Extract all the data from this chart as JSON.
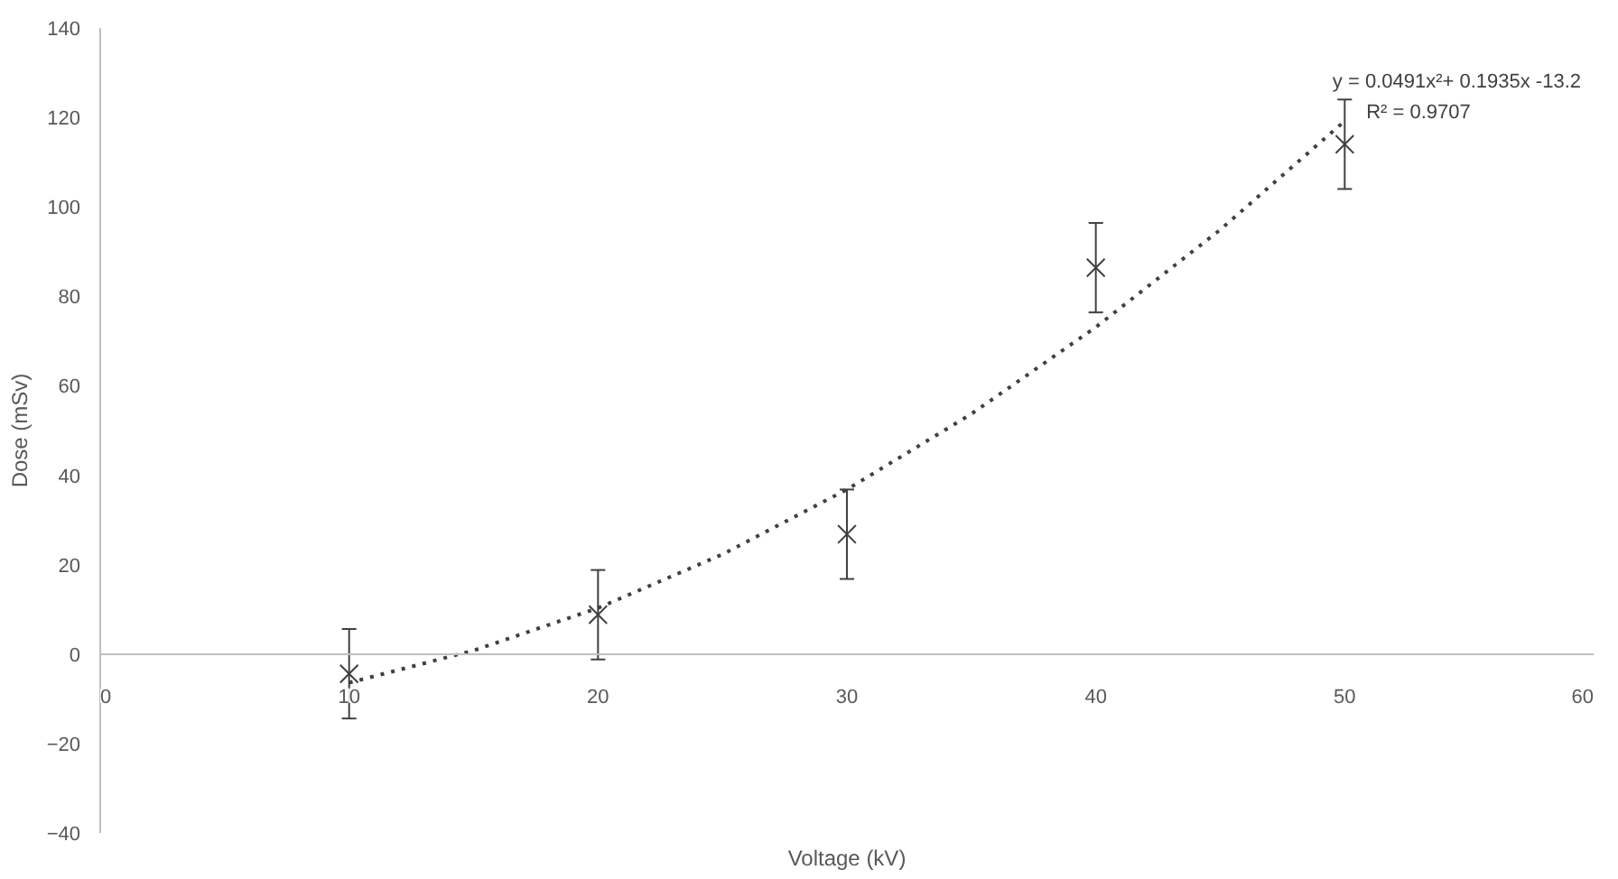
{
  "chart_data": {
    "type": "scatter",
    "xlabel": "Voltage (kV)",
    "ylabel": "Dose (mSv)",
    "xlim": [
      0,
      60
    ],
    "xticks": [
      0,
      10,
      20,
      30,
      40,
      50,
      60
    ],
    "ylim": [
      -40,
      140
    ],
    "yticks": [
      -40,
      -20,
      0,
      20,
      40,
      60,
      80,
      100,
      120,
      140
    ],
    "grid": false,
    "marker": "cross",
    "series": [
      {
        "color": "#404040",
        "x": [
          10,
          20,
          30,
          40,
          50
        ],
        "values": [
          -4.4,
          8.8,
          26.8,
          86.4,
          114
        ],
        "errors": [
          10,
          10,
          10,
          10,
          10
        ]
      },
      {
        "type": "line",
        "color": "#404040",
        "line_style": "dotted",
        "marker": "none",
        "x": [
          10,
          15,
          20,
          25,
          30,
          35,
          40,
          45,
          50
        ],
        "values": [
          -6.4,
          0.8,
          10.3,
          22.3,
          36.8,
          53.7,
          73.1,
          94.9,
          119.2
        ]
      }
    ],
    "annotations": [
      "y = 0.0491x²+ 0.1935x -13.2",
      "R² = 0.9707"
    ]
  }
}
